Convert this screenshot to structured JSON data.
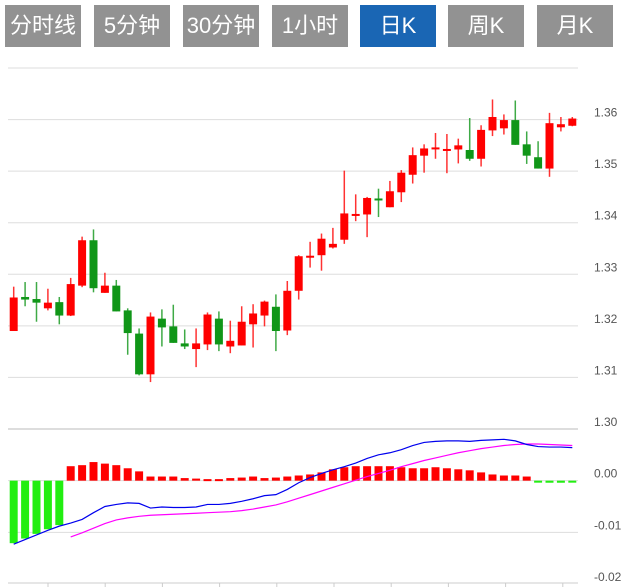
{
  "tabs": [
    {
      "label": "分时线",
      "active": false
    },
    {
      "label": "5分钟",
      "active": false
    },
    {
      "label": "30分钟",
      "active": false
    },
    {
      "label": "1小时",
      "active": false
    },
    {
      "label": "日K",
      "active": true
    },
    {
      "label": "周K",
      "active": false
    },
    {
      "label": "月K",
      "active": false
    }
  ],
  "colors": {
    "up": "#ff0000",
    "down": "#109618",
    "hist_up": "#ff0000",
    "hist_down": "#22ee11",
    "dif": "#0000ee",
    "dea": "#ff00ff",
    "tab": "#929292",
    "tab_active": "#1a66b4"
  },
  "chart_data": [
    {
      "type": "candlestick",
      "title": "",
      "ylim": [
        1.3,
        1.37
      ],
      "yticks": [
        "1.36",
        "1.35",
        "1.34",
        "1.33",
        "1.32",
        "1.31",
        "1.30"
      ],
      "ytick_values": [
        1.36,
        1.35,
        1.34,
        1.33,
        1.32,
        1.31,
        1.3
      ],
      "grid": true,
      "ohlc": [
        [
          1.319,
          1.3276,
          1.319,
          1.3255
        ],
        [
          1.3256,
          1.3285,
          1.3238,
          1.3251
        ],
        [
          1.3252,
          1.3285,
          1.3208,
          1.3245
        ],
        [
          1.3234,
          1.3272,
          1.323,
          1.3245
        ],
        [
          1.3246,
          1.3256,
          1.3203,
          1.322
        ],
        [
          1.322,
          1.3293,
          1.3219,
          1.3281
        ],
        [
          1.3278,
          1.3373,
          1.3275,
          1.3366
        ],
        [
          1.3366,
          1.3387,
          1.3265,
          1.3273
        ],
        [
          1.3264,
          1.3303,
          1.3264,
          1.3278
        ],
        [
          1.3278,
          1.3289,
          1.3228,
          1.3228
        ],
        [
          1.323,
          1.3234,
          1.3144,
          1.3186
        ],
        [
          1.3185,
          1.3195,
          1.3104,
          1.3106
        ],
        [
          1.3106,
          1.3226,
          1.3091,
          1.3218
        ],
        [
          1.3214,
          1.3232,
          1.316,
          1.3197
        ],
        [
          1.3199,
          1.3241,
          1.3167,
          1.3167
        ],
        [
          1.3166,
          1.3193,
          1.3155,
          1.316
        ],
        [
          1.3155,
          1.3195,
          1.312,
          1.3166
        ],
        [
          1.3164,
          1.3226,
          1.3153,
          1.3222
        ],
        [
          1.3214,
          1.3228,
          1.3151,
          1.3164
        ],
        [
          1.316,
          1.321,
          1.3147,
          1.3171
        ],
        [
          1.3162,
          1.3238,
          1.3162,
          1.3208
        ],
        [
          1.3203,
          1.3242,
          1.3158,
          1.3224
        ],
        [
          1.322,
          1.3249,
          1.3199,
          1.3247
        ],
        [
          1.3237,
          1.3261,
          1.3151,
          1.319
        ],
        [
          1.3191,
          1.3287,
          1.3182,
          1.3268
        ],
        [
          1.3268,
          1.3337,
          1.3251,
          1.3335
        ],
        [
          1.3335,
          1.3363,
          1.3313,
          1.3336
        ],
        [
          1.3337,
          1.3379,
          1.3307,
          1.3369
        ],
        [
          1.3352,
          1.339,
          1.335,
          1.3359
        ],
        [
          1.3367,
          1.3501,
          1.3359,
          1.3418
        ],
        [
          1.3416,
          1.3455,
          1.3403,
          1.3417
        ],
        [
          1.3416,
          1.345,
          1.3372,
          1.3448
        ],
        [
          1.3447,
          1.3466,
          1.3411,
          1.3445
        ],
        [
          1.343,
          1.3481,
          1.343,
          1.3461
        ],
        [
          1.3459,
          1.3502,
          1.344,
          1.3497
        ],
        [
          1.3493,
          1.3546,
          1.3476,
          1.3531
        ],
        [
          1.353,
          1.3552,
          1.3497,
          1.3544
        ],
        [
          1.3545,
          1.3574,
          1.3524,
          1.3546
        ],
        [
          1.3542,
          1.3572,
          1.3496,
          1.3543
        ],
        [
          1.3542,
          1.3563,
          1.3515,
          1.355
        ],
        [
          1.3541,
          1.3603,
          1.352,
          1.3524
        ],
        [
          1.3524,
          1.3589,
          1.3509,
          1.358
        ],
        [
          1.3579,
          1.3639,
          1.3568,
          1.3605
        ],
        [
          1.3583,
          1.361,
          1.3571,
          1.3599
        ],
        [
          1.3599,
          1.3637,
          1.3551,
          1.3551
        ],
        [
          1.3552,
          1.3577,
          1.3514,
          1.353
        ],
        [
          1.3527,
          1.3558,
          1.3505,
          1.3505
        ],
        [
          1.3505,
          1.3613,
          1.3489,
          1.3593
        ],
        [
          1.3585,
          1.3605,
          1.3577,
          1.3591
        ],
        [
          1.3588,
          1.3605,
          1.3587,
          1.3602
        ]
      ]
    },
    {
      "type": "macd",
      "ylim": [
        -0.02,
        0.01
      ],
      "yticks": [
        "0.00",
        "-0.01",
        "-0.02"
      ],
      "ytick_values": [
        0.0,
        -0.01,
        -0.02
      ],
      "histogram": [
        -0.0121,
        -0.0112,
        -0.0103,
        -0.0094,
        -0.0086,
        0.0028,
        0.003,
        0.0036,
        0.0033,
        0.003,
        0.0024,
        0.0018,
        0.0008,
        0.0008,
        0.0008,
        0.0005,
        0.0004,
        0.0003,
        0.0003,
        0.0005,
        0.0006,
        0.0008,
        0.0005,
        0.0006,
        0.0008,
        0.001,
        0.0012,
        0.0016,
        0.0022,
        0.0026,
        0.0028,
        0.0028,
        0.0028,
        0.0028,
        0.0026,
        0.0024,
        0.0024,
        0.0026,
        0.0024,
        0.0022,
        0.002,
        0.0016,
        0.0012,
        0.001,
        0.001,
        0.0008,
        -0.0001,
        -0.0004,
        -0.0004,
        -0.0003
      ],
      "dif": [
        -0.0123,
        -0.0114,
        -0.0105,
        -0.0096,
        -0.0088,
        -0.0082,
        -0.0075,
        -0.0062,
        -0.005,
        -0.0046,
        -0.0043,
        -0.0044,
        -0.0053,
        -0.0051,
        -0.0052,
        -0.0052,
        -0.0051,
        -0.0046,
        -0.0046,
        -0.0044,
        -0.004,
        -0.0035,
        -0.0029,
        -0.0027,
        -0.0017,
        -0.0004,
        0.0006,
        0.0014,
        0.0021,
        0.0027,
        0.0034,
        0.0043,
        0.005,
        0.0054,
        0.006,
        0.0068,
        0.0074,
        0.0076,
        0.0077,
        0.0077,
        0.0076,
        0.0078,
        0.0079,
        0.008,
        0.0077,
        0.007,
        0.0066,
        0.0065,
        0.0065,
        0.0064
      ],
      "dea": [
        null,
        null,
        null,
        null,
        null,
        -0.0109,
        -0.0101,
        -0.0092,
        -0.0083,
        -0.0076,
        -0.0072,
        -0.0069,
        -0.0067,
        -0.0066,
        -0.0065,
        -0.0064,
        -0.0063,
        -0.0062,
        -0.0061,
        -0.006,
        -0.0058,
        -0.0055,
        -0.0051,
        -0.0047,
        -0.0041,
        -0.0034,
        -0.0027,
        -0.002,
        -0.0013,
        -0.0006,
        0.0001,
        0.0008,
        0.0014,
        0.002,
        0.0027,
        0.0033,
        0.0039,
        0.0044,
        0.0049,
        0.0054,
        0.0058,
        0.0062,
        0.0065,
        0.0068,
        0.007,
        0.0071,
        0.0071,
        0.007,
        0.0069,
        0.0068
      ]
    }
  ]
}
